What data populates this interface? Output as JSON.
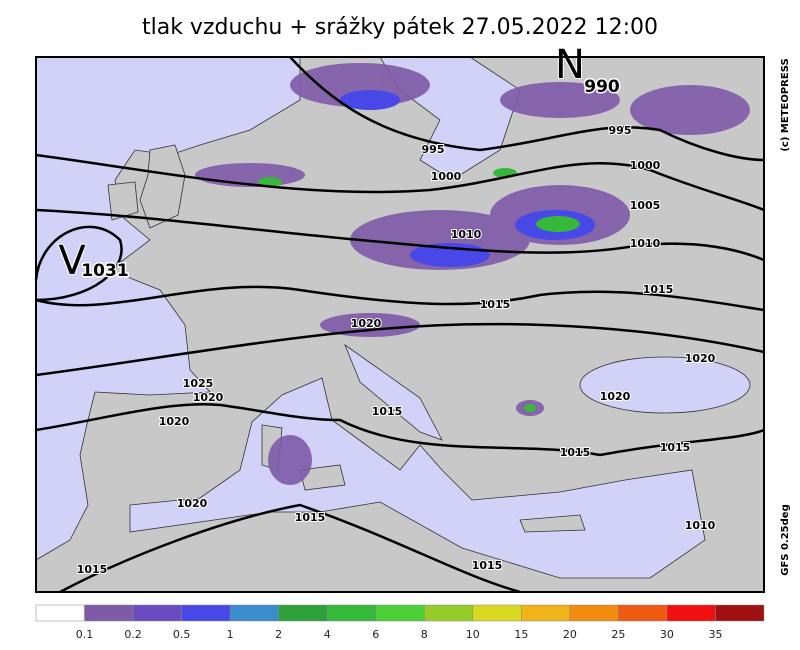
{
  "header": {
    "title": "tlak vzduchu + srážky   pátek 27.05.2022 12:00"
  },
  "credits": {
    "source": "(c)  METEOPRESS",
    "model": "GFS  0.25deg"
  },
  "centers": [
    {
      "letter": "N",
      "value": 990
    },
    {
      "letter": "V",
      "value": 1031
    }
  ],
  "isobar_labels": [
    995,
    995,
    1000,
    1000,
    1005,
    1010,
    1010,
    1015,
    1015,
    1020,
    1020,
    1020,
    1025,
    1020,
    1020,
    1015,
    1015,
    1015,
    1020,
    1015,
    1015,
    1015,
    1010
  ],
  "legend": {
    "levels": [
      0.1,
      0.2,
      0.5,
      1,
      2,
      4,
      6,
      8,
      10,
      15,
      20,
      25,
      30,
      35
    ],
    "colors": [
      "#ffffff",
      "#7e5aa8",
      "#6a4cc0",
      "#4848e8",
      "#3a8ccc",
      "#2ea03a",
      "#36b83a",
      "#4cd03a",
      "#96cc28",
      "#d8d820",
      "#f0b418",
      "#f08c10",
      "#f05a10",
      "#f01010",
      "#a01010"
    ]
  }
}
